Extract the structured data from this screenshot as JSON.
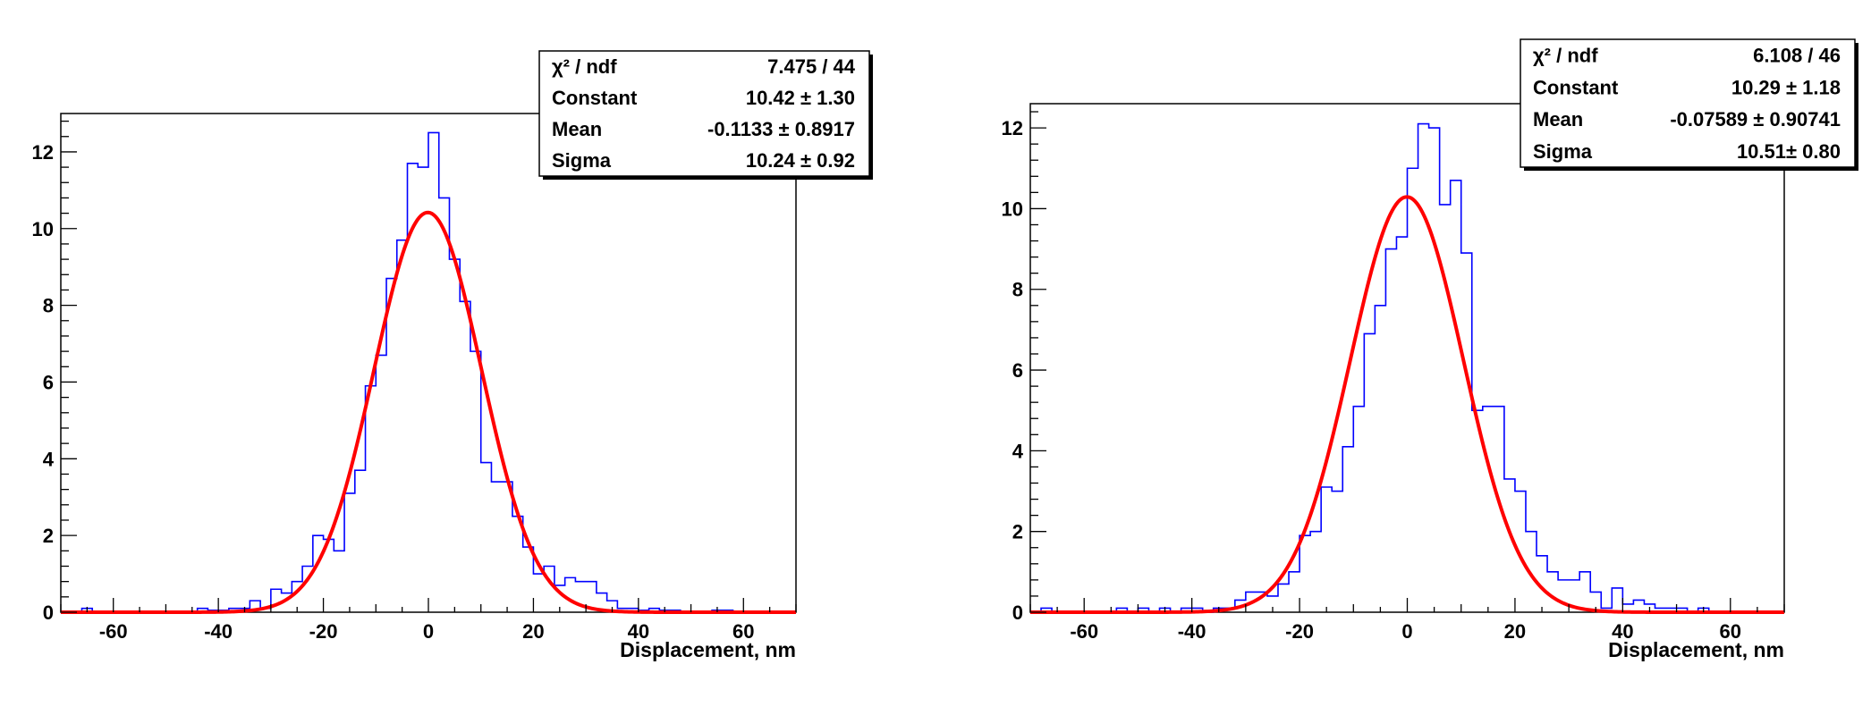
{
  "chart_data": [
    {
      "type": "histogram",
      "xlabel": "Displacement, nm",
      "ylabel": "",
      "xlim": [
        -70,
        70
      ],
      "ylim": [
        0,
        13
      ],
      "xticks": [
        -60,
        -40,
        -20,
        0,
        20,
        40,
        60
      ],
      "yticks": [
        0,
        2,
        4,
        6,
        8,
        10,
        12
      ],
      "bin_edges_start": -70,
      "bin_width": 2,
      "counts": [
        0,
        0,
        0.1,
        0,
        0,
        0,
        0,
        0,
        0,
        0,
        0,
        0,
        0,
        0.1,
        0.05,
        0.05,
        0.1,
        0.1,
        0.3,
        0.1,
        0.6,
        0.5,
        0.8,
        1.2,
        2.0,
        1.9,
        1.6,
        3.1,
        3.7,
        5.9,
        6.7,
        8.7,
        9.7,
        11.7,
        11.6,
        12.5,
        10.8,
        9.2,
        8.1,
        6.8,
        3.9,
        3.4,
        3.4,
        2.5,
        1.7,
        1.0,
        1.2,
        0.7,
        0.9,
        0.8,
        0.8,
        0.5,
        0.3,
        0.1,
        0.1,
        0.05,
        0.1,
        0.05,
        0.05,
        0,
        0,
        0,
        0.05,
        0.05,
        0,
        0,
        0,
        0,
        0,
        0
      ],
      "stats": [
        {
          "label": "χ² / ndf",
          "value": "7.475 / 44"
        },
        {
          "label": "Constant",
          "value": "10.42 ± 1.30"
        },
        {
          "label": "Mean",
          "value": "-0.1133 ± 0.8917"
        },
        {
          "label": "Sigma",
          "value": "10.24 ± 0.92"
        }
      ],
      "fit": {
        "type": "gaussian",
        "constant": 10.42,
        "mean": -0.1133,
        "sigma": 10.24,
        "color": "#ff0000"
      },
      "hist_color": "#0000ff"
    },
    {
      "type": "histogram",
      "xlabel": "Displacement, nm",
      "ylabel": "",
      "xlim": [
        -70,
        70
      ],
      "ylim": [
        0,
        12.6
      ],
      "xticks": [
        -60,
        -40,
        -20,
        0,
        20,
        40,
        60
      ],
      "yticks": [
        0,
        2,
        4,
        6,
        8,
        10,
        12
      ],
      "bin_edges_start": -70,
      "bin_width": 2,
      "counts": [
        0,
        0.1,
        0,
        0,
        0,
        0,
        0,
        0,
        0.1,
        0,
        0.1,
        0,
        0.1,
        0,
        0.1,
        0.1,
        0,
        0.1,
        0.1,
        0.3,
        0.5,
        0.5,
        0.4,
        0.7,
        1.0,
        1.9,
        2.0,
        3.1,
        3.0,
        4.1,
        5.1,
        6.9,
        7.6,
        9.0,
        9.3,
        11.0,
        12.1,
        12.0,
        10.1,
        10.7,
        8.9,
        5.0,
        5.1,
        5.1,
        3.3,
        3.0,
        2.0,
        1.4,
        1.0,
        0.8,
        0.8,
        1.0,
        0.5,
        0.1,
        0.6,
        0.2,
        0.3,
        0.2,
        0.1,
        0.1,
        0.1,
        0,
        0.1,
        0,
        0,
        0,
        0,
        0,
        0,
        0
      ],
      "stats": [
        {
          "label": "χ² / ndf",
          "value": "6.108 / 46"
        },
        {
          "label": "Constant",
          "value": "10.29 ± 1.18"
        },
        {
          "label": "Mean",
          "value": "-0.07589 ± 0.90741"
        },
        {
          "label": "Sigma",
          "value": "10.51± 0.80"
        }
      ],
      "fit": {
        "type": "gaussian",
        "constant": 10.29,
        "mean": -0.07589,
        "sigma": 10.51,
        "color": "#ff0000"
      },
      "hist_color": "#0000ff"
    }
  ]
}
